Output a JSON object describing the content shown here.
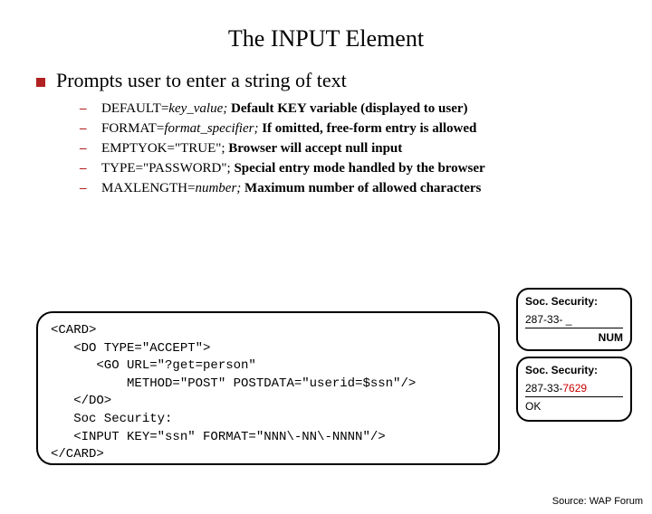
{
  "colors": {
    "bullet_red": "#b22222",
    "bg": "#ffffff",
    "text": "#000000",
    "code_border": "#000000",
    "highlight_red": "#cc0000"
  },
  "title": "The INPUT Element",
  "main_bullet": "Prompts user to enter a string of text",
  "sub_items": [
    {
      "prefix": "DEFAULT=",
      "italic": "key_value;",
      "rest": " Default KEY variable (displayed to user)"
    },
    {
      "prefix": "FORMAT=",
      "italic": "format_specifier;",
      "rest": " If omitted, free-form entry is allowed"
    },
    {
      "prefix": "EMPTYOK=\"TRUE\";",
      "italic": "",
      "rest": " Browser will accept null input"
    },
    {
      "prefix": "TYPE=\"PASSWORD\";",
      "italic": "",
      "rest": " Special entry mode handled by the browser"
    },
    {
      "prefix": "MAXLENGTH=",
      "italic": "number;",
      "rest": " Maximum number of allowed characters"
    }
  ],
  "code": "<CARD>\n   <DO TYPE=\"ACCEPT\">\n      <GO URL=\"?get=person\"\n          METHOD=\"POST\" POSTDATA=\"userid=$ssn\"/>\n   </DO>\n   Soc Security:\n   <INPUT KEY=\"ssn\" FORMAT=\"NNN\\-NN\\-NNNN\"/>\n</CARD>",
  "phone1": {
    "title": "Soc. Security:",
    "value": "287-33- _",
    "footer": "NUM"
  },
  "phone2": {
    "title": "Soc. Security:",
    "value_prefix": "287-33-",
    "value_suffix": "7629",
    "footer": "OK"
  },
  "source": "Source: WAP Forum"
}
